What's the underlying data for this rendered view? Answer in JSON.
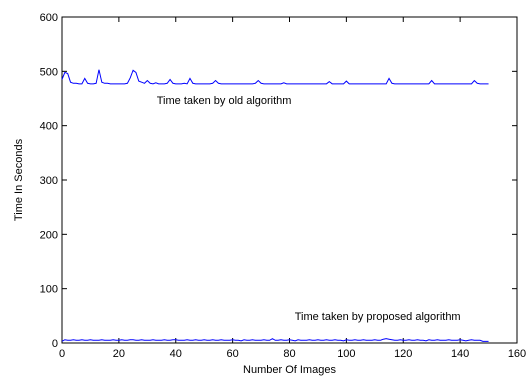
{
  "chart_data": {
    "type": "line",
    "xlabel": "Number Of Images",
    "ylabel": "Time In Seconds",
    "xlim": [
      0,
      160
    ],
    "ylim": [
      0,
      600
    ],
    "xticks": [
      0,
      20,
      40,
      60,
      80,
      100,
      120,
      140,
      160
    ],
    "yticks": [
      0,
      100,
      200,
      300,
      400,
      500,
      600
    ],
    "grid": false,
    "line_color": "#0000ff",
    "annotations": [
      {
        "text": "Time taken by old algorithm",
        "x": 57,
        "y": 440
      },
      {
        "text": "Time taken by proposed algorithm",
        "x": 111,
        "y": 42
      }
    ],
    "series": [
      {
        "x": [
          0,
          1,
          2,
          3,
          4,
          5,
          6,
          7,
          8,
          9,
          10,
          11,
          12,
          13,
          14,
          15,
          16,
          17,
          18,
          19,
          20,
          21,
          22,
          23,
          24,
          25,
          26,
          27,
          28,
          29,
          30,
          31,
          32,
          33,
          34,
          35,
          36,
          37,
          38,
          39,
          40,
          41,
          42,
          43,
          44,
          45,
          46,
          47,
          48,
          49,
          50,
          51,
          52,
          53,
          54,
          55,
          56,
          57,
          58,
          59,
          60,
          61,
          62,
          63,
          64,
          65,
          66,
          67,
          68,
          69,
          70,
          71,
          72,
          73,
          74,
          75,
          76,
          77,
          78,
          79,
          80,
          81,
          82,
          83,
          84,
          85,
          86,
          87,
          88,
          89,
          90,
          91,
          92,
          93,
          94,
          95,
          96,
          97,
          98,
          99,
          100,
          101,
          102,
          103,
          104,
          105,
          106,
          107,
          108,
          109,
          110,
          111,
          112,
          113,
          114,
          115,
          116,
          117,
          118,
          119,
          120,
          121,
          122,
          123,
          124,
          125,
          126,
          127,
          128,
          129,
          130,
          131,
          132,
          133,
          134,
          135,
          136,
          137,
          138,
          139,
          140,
          141,
          142,
          143,
          144,
          145,
          146,
          147,
          148,
          149,
          150
        ],
        "y": [
          485,
          498,
          496,
          480,
          478,
          478,
          477,
          477,
          487,
          478,
          477,
          477,
          478,
          503,
          480,
          478,
          478,
          477,
          477,
          477,
          477,
          477,
          477,
          478,
          488,
          502,
          498,
          482,
          480,
          478,
          483,
          478,
          477,
          479,
          477,
          477,
          477,
          478,
          485,
          478,
          477,
          477,
          477,
          478,
          477,
          487,
          478,
          477,
          477,
          477,
          477,
          477,
          477,
          478,
          483,
          478,
          477,
          477,
          477,
          477,
          477,
          477,
          477,
          477,
          477,
          477,
          477,
          477,
          478,
          483,
          478,
          477,
          477,
          477,
          477,
          477,
          477,
          477,
          479,
          477,
          477,
          477,
          477,
          477,
          477,
          477,
          477,
          477,
          477,
          477,
          477,
          477,
          477,
          477,
          481,
          477,
          477,
          477,
          477,
          477,
          482,
          477,
          477,
          477,
          477,
          477,
          477,
          477,
          477,
          477,
          477,
          477,
          477,
          477,
          477,
          487,
          478,
          477,
          477,
          477,
          477,
          477,
          477,
          477,
          477,
          477,
          477,
          477,
          477,
          477,
          483,
          477,
          477,
          477,
          477,
          477,
          477,
          477,
          477,
          477,
          477,
          477,
          477,
          477,
          477,
          483,
          478,
          477,
          477,
          477,
          477
        ]
      },
      {
        "x": [
          0,
          1,
          2,
          3,
          4,
          5,
          6,
          7,
          8,
          9,
          10,
          11,
          12,
          13,
          14,
          15,
          16,
          17,
          18,
          19,
          20,
          21,
          22,
          23,
          24,
          25,
          26,
          27,
          28,
          29,
          30,
          31,
          32,
          33,
          34,
          35,
          36,
          37,
          38,
          39,
          40,
          41,
          42,
          43,
          44,
          45,
          46,
          47,
          48,
          49,
          50,
          51,
          52,
          53,
          54,
          55,
          56,
          57,
          58,
          59,
          60,
          61,
          62,
          63,
          64,
          65,
          66,
          67,
          68,
          69,
          70,
          71,
          72,
          73,
          74,
          75,
          76,
          77,
          78,
          79,
          80,
          81,
          82,
          83,
          84,
          85,
          86,
          87,
          88,
          89,
          90,
          91,
          92,
          93,
          94,
          95,
          96,
          97,
          98,
          99,
          100,
          101,
          102,
          103,
          104,
          105,
          106,
          107,
          108,
          109,
          110,
          111,
          112,
          113,
          114,
          115,
          116,
          117,
          118,
          119,
          120,
          121,
          122,
          123,
          124,
          125,
          126,
          127,
          128,
          129,
          130,
          131,
          132,
          133,
          134,
          135,
          136,
          137,
          138,
          139,
          140,
          141,
          142,
          143,
          144,
          145,
          146,
          147,
          148,
          149,
          150
        ],
        "y": [
          3,
          6,
          5,
          5,
          6,
          5,
          5,
          6,
          5,
          5,
          6,
          5,
          5,
          5,
          6,
          5,
          5,
          5,
          6,
          5,
          5,
          6,
          5,
          5,
          6,
          6,
          5,
          5,
          6,
          5,
          5,
          5,
          6,
          5,
          5,
          5,
          6,
          5,
          5,
          6,
          6,
          5,
          5,
          5,
          6,
          5,
          5,
          6,
          5,
          5,
          6,
          5,
          5,
          6,
          5,
          5,
          6,
          5,
          5,
          5,
          6,
          5,
          5,
          4,
          6,
          5,
          5,
          6,
          5,
          5,
          5,
          6,
          5,
          5,
          8,
          5,
          5,
          6,
          5,
          5,
          6,
          5,
          4,
          6,
          5,
          5,
          5,
          6,
          5,
          5,
          6,
          5,
          5,
          6,
          5,
          5,
          6,
          5,
          5,
          4,
          6,
          5,
          5,
          6,
          5,
          5,
          6,
          5,
          5,
          5,
          6,
          5,
          5,
          7,
          8,
          7,
          6,
          5,
          5,
          6,
          5,
          5,
          6,
          5,
          5,
          6,
          5,
          5,
          4,
          6,
          5,
          5,
          6,
          5,
          5,
          5,
          6,
          5,
          5,
          5,
          6,
          5,
          4,
          5,
          6,
          5,
          5,
          5,
          3,
          3,
          3
        ]
      }
    ]
  }
}
